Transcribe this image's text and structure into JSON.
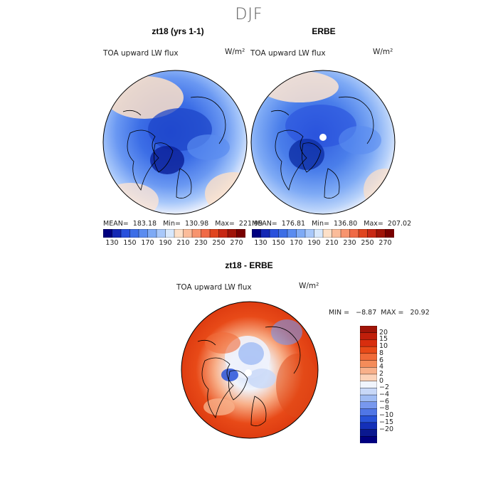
{
  "figure": {
    "season": "DJF",
    "panels": [
      {
        "title": "zt18 (yrs 1-1)",
        "variable": "TOA upward LW flux",
        "units": "W/m²",
        "stats": "MEAN=  183.18   Min=  130.98   Max=  221.99"
      },
      {
        "title": "ERBE",
        "variable": "TOA upward LW flux",
        "units": "W/m²",
        "stats": "MEAN=  176.81   Min=  136.80   Max=  207.02"
      },
      {
        "title": "zt18 - ERBE",
        "variable": "TOA upward LW flux",
        "units": "W/m²",
        "stats": "MIN =   −8.87  MAX =   20.92"
      }
    ],
    "abs_colorbar": {
      "ticks": [
        "130",
        "150",
        "170",
        "190",
        "210",
        "230",
        "250",
        "270"
      ],
      "colors": [
        "#000080",
        "#1428b4",
        "#2850dc",
        "#3c6ee6",
        "#5a8cf0",
        "#7eaaf5",
        "#a8c8fa",
        "#d8e8fc",
        "#fde0c8",
        "#fbbc9a",
        "#f7946e",
        "#f06a46",
        "#e0441e",
        "#c82814",
        "#a01408",
        "#780000"
      ]
    },
    "diff_colorbar": {
      "ticks": [
        "20",
        "15",
        "10",
        "8",
        "6",
        "4",
        "2",
        "0",
        "−2",
        "−4",
        "−6",
        "−8",
        "−10",
        "−15",
        "−20"
      ],
      "colors": [
        "#a01408",
        "#c01e0a",
        "#d82e0e",
        "#e84a18",
        "#f06a38",
        "#f48c5a",
        "#f8b08a",
        "#fcd2b8",
        "#f0f4fc",
        "#c8d8f8",
        "#a0bcf4",
        "#7898ee",
        "#5076e6",
        "#2852d8",
        "#1430b8",
        "#0a1890",
        "#000080"
      ]
    }
  },
  "chart_data": [
    {
      "type": "heatmap",
      "title": "zt18 (yrs 1-1)",
      "variable": "TOA upward LW flux",
      "units": "W/m²",
      "projection": "north polar stereographic",
      "mean": 183.18,
      "min": 130.98,
      "max": 221.99,
      "color_levels": [
        130,
        140,
        150,
        160,
        170,
        180,
        190,
        200,
        210,
        220,
        230,
        240,
        250,
        260,
        270
      ]
    },
    {
      "type": "heatmap",
      "title": "ERBE",
      "variable": "TOA upward LW flux",
      "units": "W/m²",
      "projection": "north polar stereographic",
      "mean": 176.81,
      "min": 136.8,
      "max": 207.02,
      "color_levels": [
        130,
        140,
        150,
        160,
        170,
        180,
        190,
        200,
        210,
        220,
        230,
        240,
        250,
        260,
        270
      ]
    },
    {
      "type": "heatmap",
      "title": "zt18 - ERBE",
      "variable": "TOA upward LW flux",
      "units": "W/m²",
      "projection": "north polar stereographic",
      "min": -8.87,
      "max": 20.92,
      "color_levels": [
        -20,
        -15,
        -10,
        -8,
        -6,
        -4,
        -2,
        0,
        2,
        4,
        6,
        8,
        10,
        15,
        20
      ]
    }
  ]
}
